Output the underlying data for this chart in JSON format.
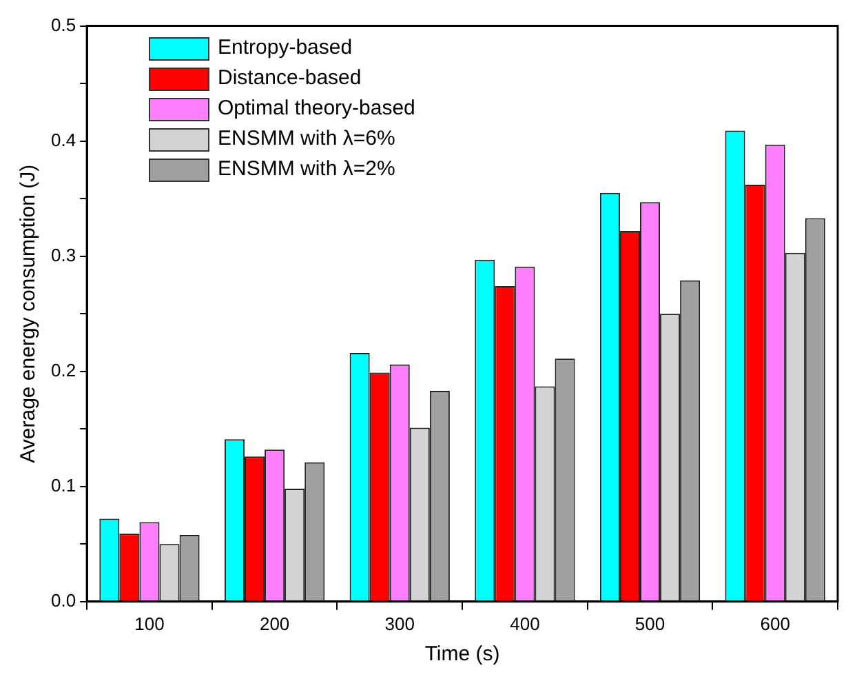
{
  "chart_data": {
    "type": "bar",
    "xlabel": "Time (s)",
    "ylabel": "Average energy consumption (J)",
    "categories": [
      "100",
      "200",
      "300",
      "400",
      "500",
      "600"
    ],
    "series": [
      {
        "name": "Entropy-based",
        "color": "#00ffff",
        "values": [
          0.072,
          0.141,
          0.216,
          0.297,
          0.355,
          0.409
        ]
      },
      {
        "name": "Distance-based",
        "color": "#ff0000",
        "values": [
          0.059,
          0.126,
          0.199,
          0.274,
          0.322,
          0.362
        ]
      },
      {
        "name": "Optimal theory-based",
        "color": "#ff80ff",
        "values": [
          0.069,
          0.132,
          0.206,
          0.291,
          0.347,
          0.397
        ]
      },
      {
        "name": "ENSMM with λ=6%",
        "color": "#d3d3d3",
        "values": [
          0.05,
          0.098,
          0.151,
          0.187,
          0.25,
          0.303
        ]
      },
      {
        "name": "ENSMM with λ=2%",
        "color": "#a0a0a0",
        "values": [
          0.058,
          0.121,
          0.183,
          0.211,
          0.279,
          0.333
        ]
      }
    ],
    "ylim": [
      0,
      0.5
    ],
    "yticks": [
      {
        "value": 0,
        "label": "0.0"
      },
      {
        "value": 0.05,
        "label": null
      },
      {
        "value": 0.1,
        "label": "0.1"
      },
      {
        "value": 0.15,
        "label": null
      },
      {
        "value": 0.2,
        "label": "0.2"
      },
      {
        "value": 0.25,
        "label": null
      },
      {
        "value": 0.3,
        "label": "0.3"
      },
      {
        "value": 0.35,
        "label": null
      },
      {
        "value": 0.4,
        "label": "0.4"
      },
      {
        "value": 0.45,
        "label": null
      },
      {
        "value": 0.5,
        "label": "0.5"
      }
    ],
    "legend": "top left"
  }
}
